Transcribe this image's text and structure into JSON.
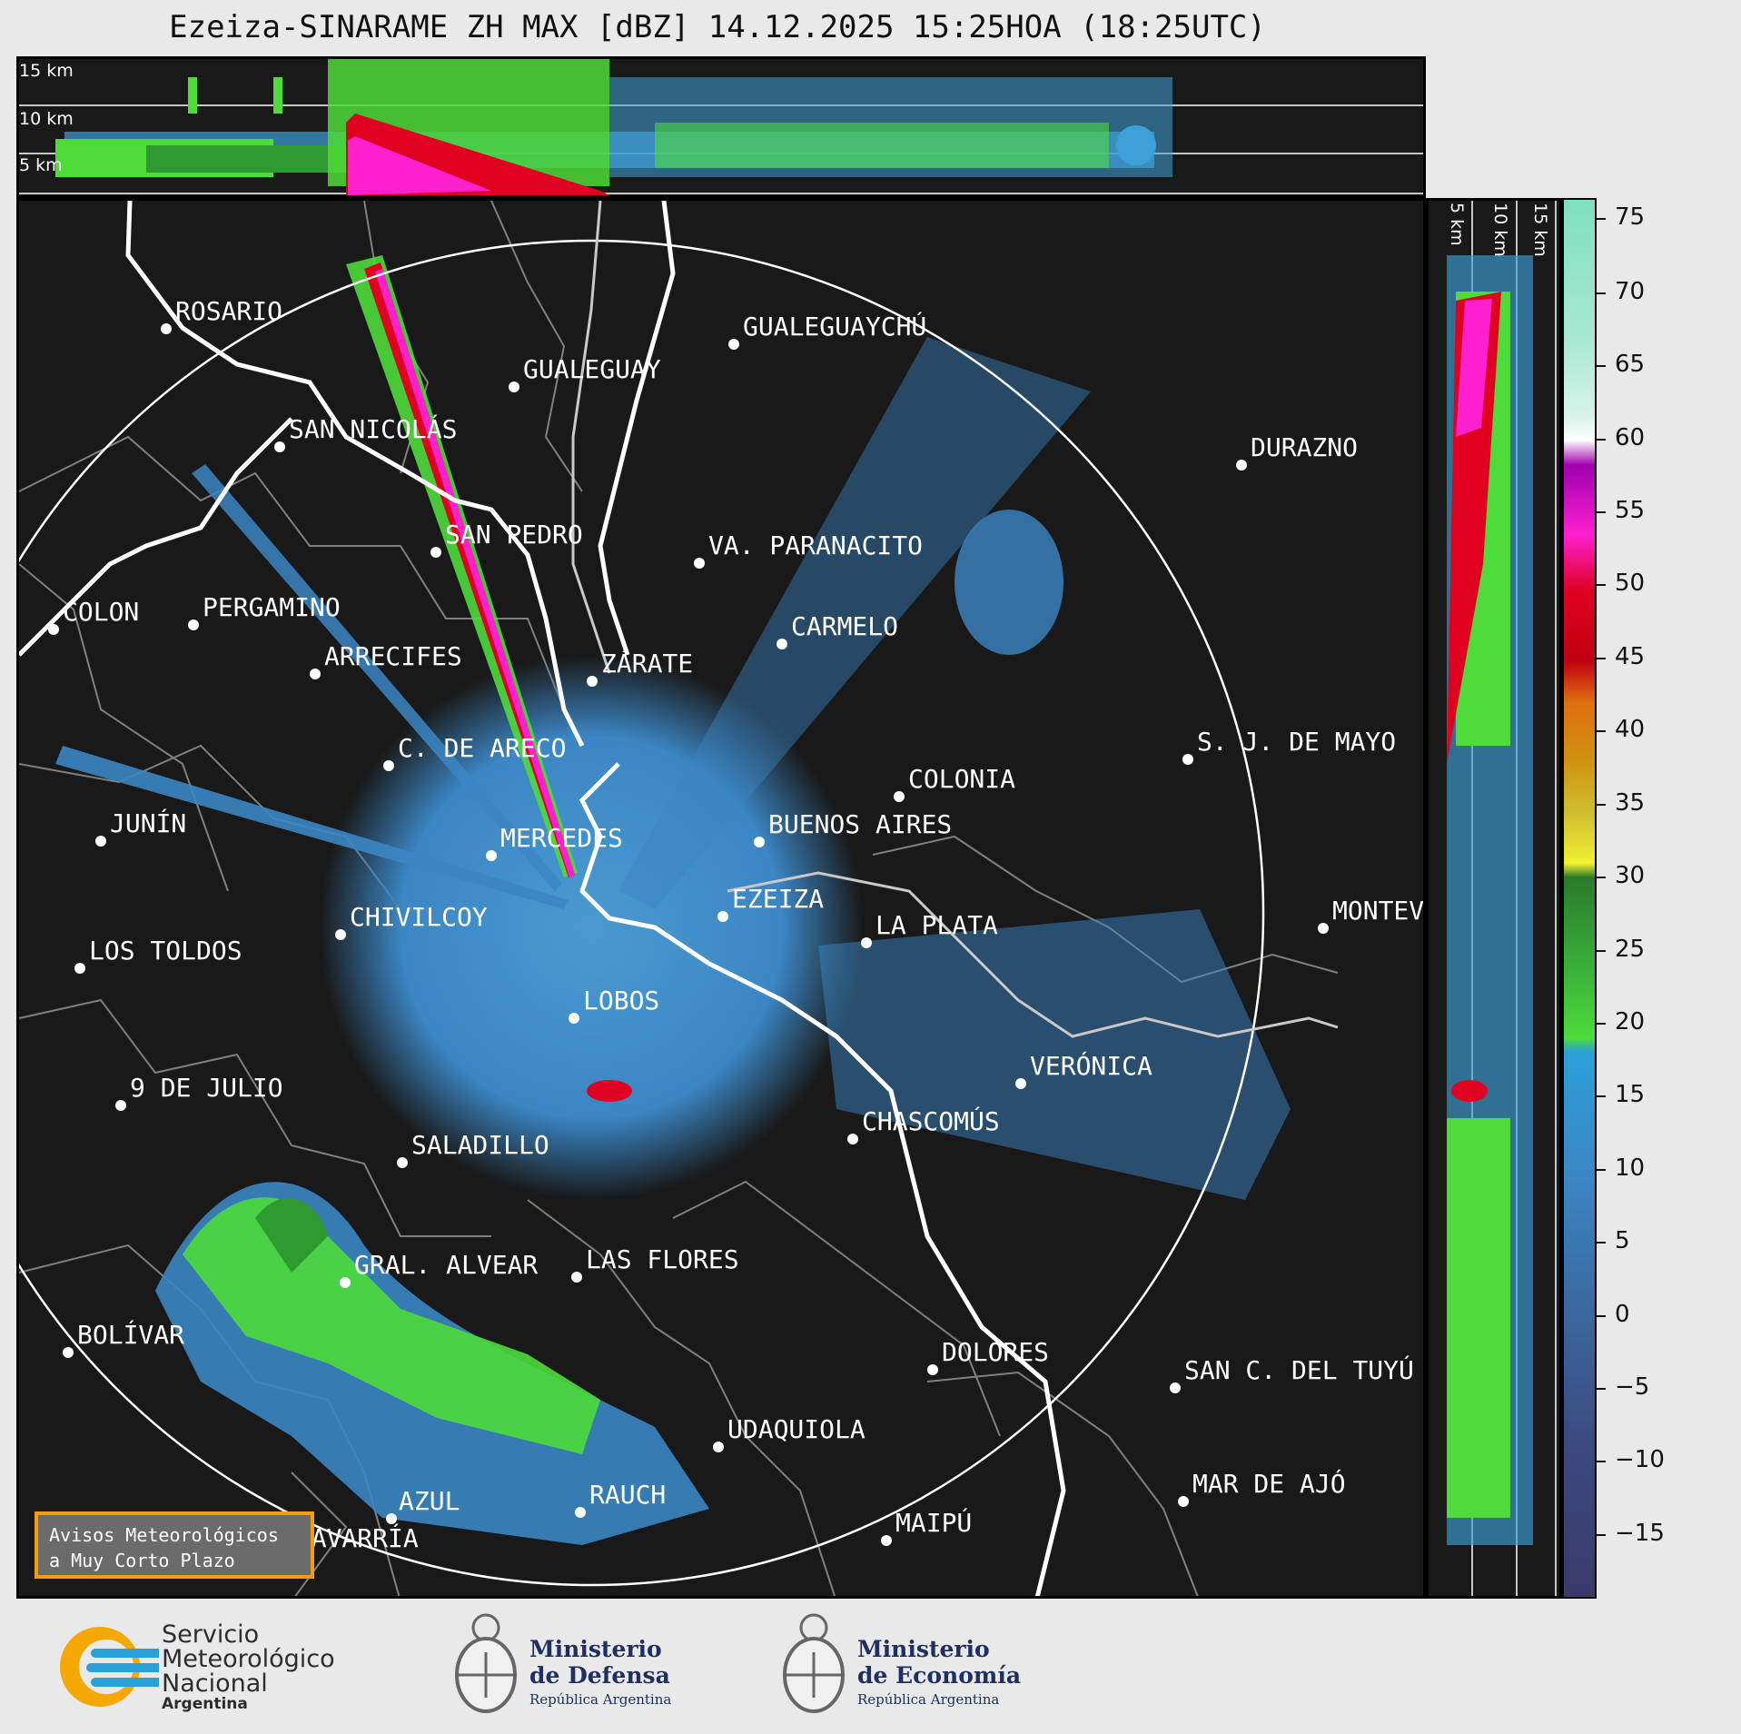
{
  "title": "Ezeiza-SINARAME ZH MAX [dBZ] 14.12.2025 15:25HOA (18:25UTC)",
  "height_labels_top": [
    "15 km",
    "10 km",
    "5 km"
  ],
  "height_labels_side": [
    "5 km",
    "10 km",
    "15 km"
  ],
  "colorbar": {
    "unit": "dBZ",
    "ticks": [
      "75",
      "70",
      "65",
      "60",
      "55",
      "50",
      "45",
      "40",
      "35",
      "30",
      "25",
      "20",
      "15",
      "10",
      "5",
      "0",
      "−5",
      "−10",
      "−15"
    ]
  },
  "cities": [
    {
      "name": "ROSARIO"
    },
    {
      "name": "GUALEGUAYCHÚ"
    },
    {
      "name": "GUALEGUAY"
    },
    {
      "name": "SAN NICOLÁS"
    },
    {
      "name": "DURAZNO"
    },
    {
      "name": "SAN PEDRO"
    },
    {
      "name": "VA. PARANACITO"
    },
    {
      "name": "COLON"
    },
    {
      "name": "PERGAMINO"
    },
    {
      "name": "CARMELO"
    },
    {
      "name": "ARRECIFES"
    },
    {
      "name": "ZÁRATE"
    },
    {
      "name": "C. DE ARECO"
    },
    {
      "name": "S. J. DE MAYO"
    },
    {
      "name": "COLONIA"
    },
    {
      "name": "JUNÍN"
    },
    {
      "name": "BUENOS AIRES"
    },
    {
      "name": "MERCEDES"
    },
    {
      "name": "EZEIZA"
    },
    {
      "name": "MONTEV"
    },
    {
      "name": "CHIVILCOY"
    },
    {
      "name": "LA PLATA"
    },
    {
      "name": "LOS TOLDOS"
    },
    {
      "name": "LOBOS"
    },
    {
      "name": "VERÓNICA"
    },
    {
      "name": "9 DE JULIO"
    },
    {
      "name": "CHASCOMÚS"
    },
    {
      "name": "SALADILLO"
    },
    {
      "name": "GRAL. ALVEAR"
    },
    {
      "name": "LAS FLORES"
    },
    {
      "name": "BOLÍVAR"
    },
    {
      "name": "DOLORES"
    },
    {
      "name": "SAN C. DEL TUYÚ"
    },
    {
      "name": "UDAQUIOLA"
    },
    {
      "name": "MAR DE AJÓ"
    },
    {
      "name": "RAUCH"
    },
    {
      "name": "AZUL"
    },
    {
      "name": "OLAVARRÍA"
    },
    {
      "name": "MAIPÚ"
    }
  ],
  "notice": {
    "line1": "Avisos Meteorológicos",
    "line2": "a Muy Corto Plazo"
  },
  "logos": {
    "smn": {
      "line1": "Servicio",
      "line2": "Meteorológico",
      "line3": "Nacional",
      "line4": "Argentina"
    },
    "defensa": {
      "line1": "Ministerio",
      "line2": "de Defensa",
      "line3": "República Argentina"
    },
    "economia": {
      "line1": "Ministerio",
      "line2": "de Economía",
      "line3": "República Argentina"
    }
  },
  "colors": {
    "background": "#191919",
    "range_ring": "#ffffff",
    "coast": "#ffffff",
    "borders": "#808080"
  }
}
